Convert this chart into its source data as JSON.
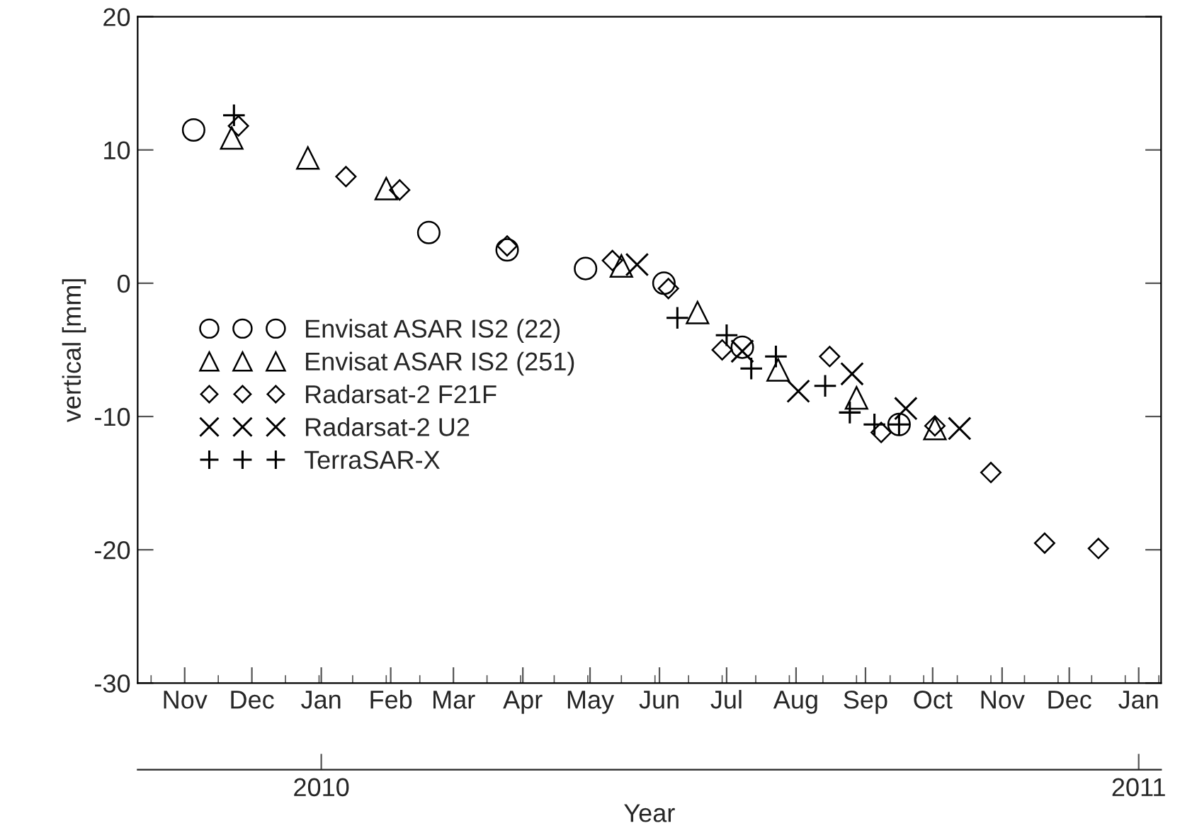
{
  "chart_data": {
    "type": "scatter",
    "ylabel": "vertical [mm]",
    "x2label": "Year",
    "xlim": [
      "2009-10-11",
      "2011-01-11"
    ],
    "xticks": [
      {
        "value": "2009-11-01",
        "label": "Nov"
      },
      {
        "value": "2009-12-01",
        "label": "Dec"
      },
      {
        "value": "2010-01-01",
        "label": "Jan"
      },
      {
        "value": "2010-02-01",
        "label": "Feb"
      },
      {
        "value": "2010-03-01",
        "label": "Mar"
      },
      {
        "value": "2010-04-01",
        "label": "Apr"
      },
      {
        "value": "2010-05-01",
        "label": "May"
      },
      {
        "value": "2010-06-01",
        "label": "Jun"
      },
      {
        "value": "2010-07-01",
        "label": "Jul"
      },
      {
        "value": "2010-08-01",
        "label": "Aug"
      },
      {
        "value": "2010-09-01",
        "label": "Sep"
      },
      {
        "value": "2010-10-01",
        "label": "Oct"
      },
      {
        "value": "2010-11-01",
        "label": "Nov"
      },
      {
        "value": "2010-12-01",
        "label": "Dec"
      },
      {
        "value": "2011-01-01",
        "label": "Jan"
      }
    ],
    "x2lim": [
      "2009-10-11",
      "2011-01-11"
    ],
    "x2ticks": [
      {
        "value": "2010-01-01",
        "label": "2010"
      },
      {
        "value": "2011-01-01",
        "label": "2011"
      }
    ],
    "ylim": [
      -30,
      20
    ],
    "yticks": [
      -30,
      -20,
      -10,
      0,
      10,
      20
    ],
    "grid": false,
    "legend": "left",
    "series": [
      {
        "name": "Envisat ASAR IS2 (22)",
        "color": "#000000",
        "marker": "circle",
        "x": [
          "2009-11-05",
          "2010-02-18",
          "2010-03-25",
          "2010-04-29",
          "2010-06-03",
          "2010-07-08",
          "2010-09-16"
        ],
        "values": [
          11.5,
          3.8,
          2.5,
          1.1,
          0.0,
          -4.8,
          -10.6
        ]
      },
      {
        "name": "Envisat ASAR IS2 (251)",
        "color": "#000000",
        "marker": "triangle",
        "x": [
          "2009-11-22",
          "2009-12-26",
          "2010-01-30",
          "2010-05-15",
          "2010-06-18",
          "2010-07-24",
          "2010-08-28",
          "2010-10-02"
        ],
        "values": [
          10.9,
          9.4,
          7.1,
          1.3,
          -2.2,
          -6.5,
          -8.6,
          -10.9
        ]
      },
      {
        "name": "Radarsat-2 F21F",
        "color": "#000000",
        "marker": "diamond",
        "x": [
          "2009-11-25",
          "2010-01-12",
          "2010-02-05",
          "2010-03-25",
          "2010-05-11",
          "2010-06-05",
          "2010-06-29",
          "2010-08-16",
          "2010-09-08",
          "2010-10-02",
          "2010-10-27",
          "2010-11-20",
          "2010-12-14"
        ],
        "values": [
          11.8,
          8.0,
          7.0,
          2.8,
          1.7,
          -0.4,
          -5.0,
          -5.5,
          -11.2,
          -10.7,
          -14.2,
          -19.5,
          -19.9
        ]
      },
      {
        "name": "Radarsat-2 U2",
        "color": "#000000",
        "marker": "cross",
        "x": [
          "2010-05-22",
          "2010-07-08",
          "2010-08-02",
          "2010-08-26",
          "2010-09-19",
          "2010-10-13"
        ],
        "values": [
          1.4,
          -5.1,
          -8.1,
          -6.8,
          -9.4,
          -10.9
        ]
      },
      {
        "name": "TerraSAR-X",
        "color": "#000000",
        "marker": "plus",
        "x": [
          "2009-11-23",
          "2010-06-09",
          "2010-07-01",
          "2010-07-12",
          "2010-07-23",
          "2010-08-14",
          "2010-08-25",
          "2010-09-05",
          "2010-09-16"
        ],
        "values": [
          12.6,
          -2.6,
          -3.9,
          -6.4,
          -5.5,
          -7.7,
          -9.7,
          -10.6,
          -10.6
        ]
      }
    ]
  }
}
